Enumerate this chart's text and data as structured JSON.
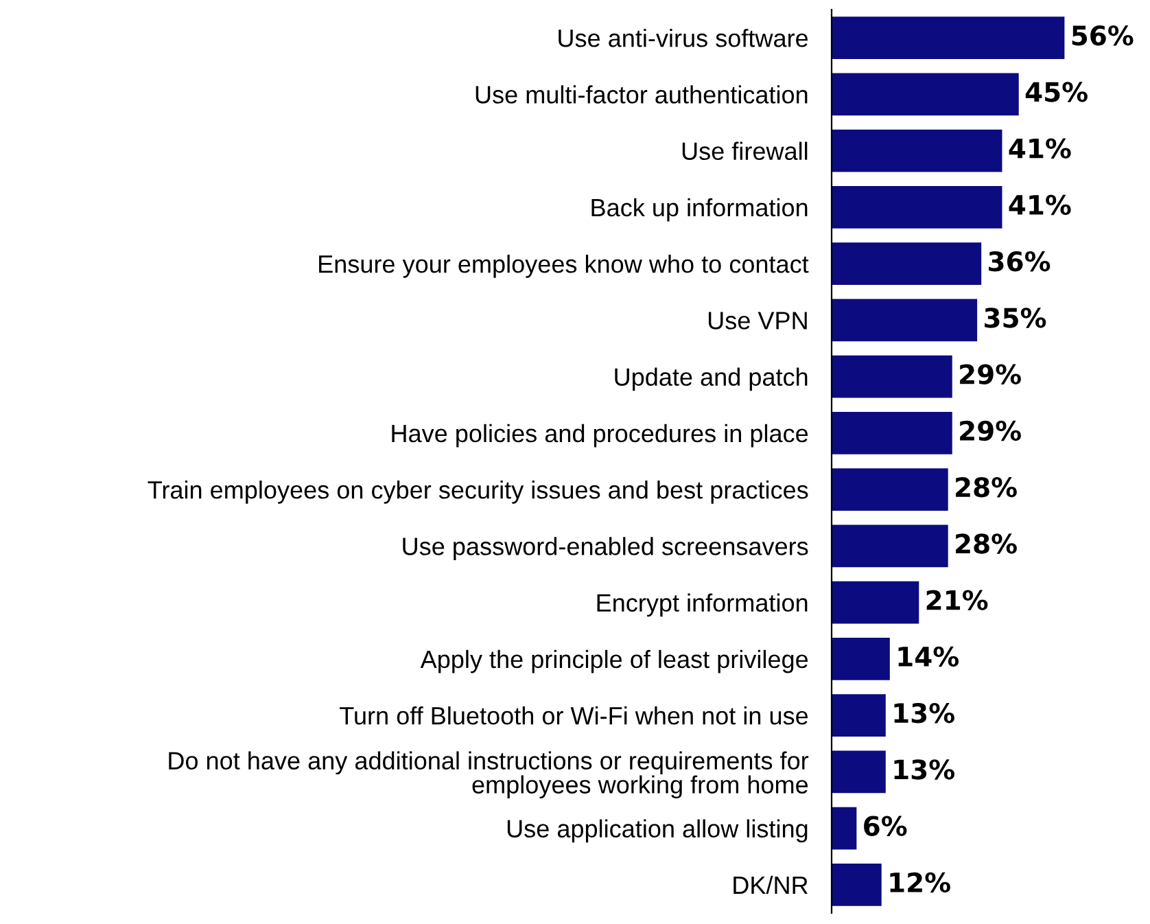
{
  "chart_data": {
    "type": "bar",
    "orientation": "horizontal",
    "categories": [
      "Use anti-virus software",
      "Use multi-factor authentication",
      "Use firewall",
      "Back up information",
      "Ensure your employees know who to contact",
      "Use VPN",
      "Update and patch",
      "Have policies and procedures in place",
      "Train employees on cyber security issues and best practices",
      "Use password-enabled screensavers",
      "Encrypt information",
      "Apply the principle of least privilege",
      "Turn off Bluetooth or Wi-Fi when not in use",
      "Do not have any additional instructions or requirements for\nemployees working from home",
      "Use application allow listing",
      "DK/NR"
    ],
    "values": [
      56,
      45,
      41,
      41,
      36,
      35,
      29,
      29,
      28,
      28,
      21,
      14,
      13,
      13,
      6,
      12
    ],
    "value_labels": [
      "56%",
      "45%",
      "41%",
      "41%",
      "36%",
      "35%",
      "29%",
      "29%",
      "28%",
      "28%",
      "21%",
      "14%",
      "13%",
      "13%",
      "6%",
      "12%"
    ],
    "color": "#0c0c80",
    "relative": false,
    "grid": false,
    "legend": false
  }
}
